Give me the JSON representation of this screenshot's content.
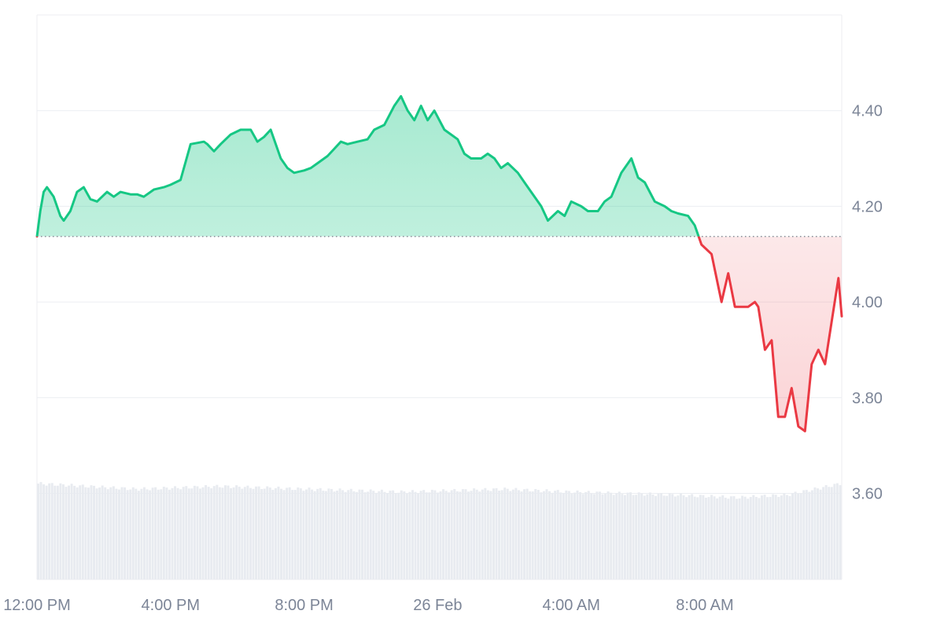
{
  "chart_data": {
    "type": "area",
    "x_ticks": [
      "12:00 PM",
      "4:00 PM",
      "8:00 PM",
      "26 Feb",
      "4:00 AM",
      "8:00 AM"
    ],
    "y_ticks": [
      "4.40",
      "4.20",
      "4.00",
      "3.80",
      "3.60"
    ],
    "ylim": [
      3.42,
      4.6
    ],
    "x_range_hours": [
      0,
      24.1
    ],
    "x_tick_hours": [
      0,
      4,
      8,
      12,
      16,
      20
    ],
    "baseline": 4.137,
    "grid": true,
    "up_color": "#16c784",
    "down_color": "#ea3943",
    "volume_color": "#e8ebf0",
    "series": [
      {
        "x_hours": [
          0,
          0.1,
          0.2,
          0.3,
          0.5,
          0.7,
          0.8,
          1.0,
          1.2,
          1.4,
          1.6,
          1.8,
          2.1,
          2.3,
          2.5,
          2.8,
          3.0,
          3.2,
          3.5,
          3.8,
          4.0,
          4.3,
          4.6,
          5.0,
          5.1,
          5.3,
          5.5,
          5.8,
          6.1,
          6.4,
          6.6,
          6.8,
          7.0,
          7.3,
          7.5,
          7.7,
          8.0,
          8.2,
          8.4,
          8.7,
          8.9,
          9.1,
          9.3,
          9.6,
          9.9,
          10.1,
          10.4,
          10.7,
          10.9,
          11.1,
          11.3,
          11.5,
          11.7,
          11.9,
          12.2,
          12.4,
          12.6,
          12.8,
          13.0,
          13.3,
          13.5,
          13.7,
          13.9,
          14.1,
          14.4,
          14.6,
          14.9,
          15.1,
          15.3,
          15.6,
          15.8,
          16.0,
          16.3,
          16.5,
          16.8,
          17.0,
          17.2,
          17.5,
          17.8,
          18.0,
          18.2,
          18.5,
          18.8,
          19.0,
          19.2,
          19.5,
          19.7,
          19.9,
          20.2,
          20.5,
          20.7,
          20.9,
          21.3,
          21.5,
          21.6,
          21.8,
          22.0,
          22.2,
          22.4,
          22.6,
          22.8,
          23.0,
          23.2,
          23.4,
          23.6,
          23.8,
          24.0,
          24.1
        ],
        "values": [
          4.137,
          4.19,
          4.23,
          4.24,
          4.22,
          4.18,
          4.17,
          4.19,
          4.23,
          4.24,
          4.215,
          4.21,
          4.23,
          4.22,
          4.23,
          4.225,
          4.225,
          4.22,
          4.235,
          4.24,
          4.245,
          4.255,
          4.33,
          4.335,
          4.33,
          4.315,
          4.33,
          4.35,
          4.36,
          4.36,
          4.335,
          4.345,
          4.36,
          4.3,
          4.28,
          4.27,
          4.275,
          4.28,
          4.29,
          4.305,
          4.32,
          4.335,
          4.33,
          4.335,
          4.34,
          4.36,
          4.37,
          4.41,
          4.43,
          4.4,
          4.38,
          4.41,
          4.38,
          4.4,
          4.36,
          4.35,
          4.34,
          4.31,
          4.3,
          4.3,
          4.31,
          4.3,
          4.28,
          4.29,
          4.27,
          4.25,
          4.22,
          4.2,
          4.17,
          4.19,
          4.18,
          4.21,
          4.2,
          4.19,
          4.19,
          4.21,
          4.22,
          4.27,
          4.3,
          4.26,
          4.25,
          4.21,
          4.2,
          4.19,
          4.185,
          4.18,
          4.16,
          4.12,
          4.1,
          4.0,
          4.06,
          3.99,
          3.99,
          4.0,
          3.99,
          3.9,
          3.92,
          3.76,
          3.76,
          3.82,
          3.74,
          3.73,
          3.87,
          3.9,
          3.87,
          3.96,
          4.05,
          3.97
        ]
      }
    ],
    "volume": [
      {
        "x_hours": 0,
        "value": 0.17
      },
      {
        "x_hours": 3,
        "value": 0.16
      },
      {
        "x_hours": 5.5,
        "value": 0.165
      },
      {
        "x_hours": 8,
        "value": 0.16
      },
      {
        "x_hours": 11,
        "value": 0.155
      },
      {
        "x_hours": 14,
        "value": 0.16
      },
      {
        "x_hours": 16,
        "value": 0.155
      },
      {
        "x_hours": 19,
        "value": 0.15
      },
      {
        "x_hours": 21,
        "value": 0.145
      },
      {
        "x_hours": 22.5,
        "value": 0.15
      },
      {
        "x_hours": 24.1,
        "value": 0.17
      }
    ]
  }
}
